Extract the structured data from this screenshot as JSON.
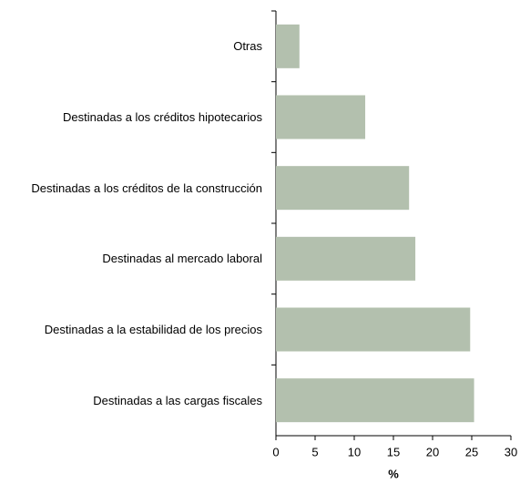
{
  "chart_data": {
    "type": "bar",
    "orientation": "horizontal",
    "categories": [
      "Otras",
      "Destinadas a los créditos hipotecarios",
      "Destinadas a los créditos de la construcción",
      "Destinadas al mercado laboral",
      "Destinadas a la estabilidad de los precios",
      "Destinadas a las cargas fiscales"
    ],
    "values": [
      3.0,
      11.4,
      17.0,
      17.8,
      24.8,
      25.3
    ],
    "color": "#b3c0ae",
    "xlabel": "%",
    "xlim": [
      0,
      30
    ],
    "xticks": [
      0,
      5,
      10,
      15,
      20,
      25,
      30
    ]
  }
}
